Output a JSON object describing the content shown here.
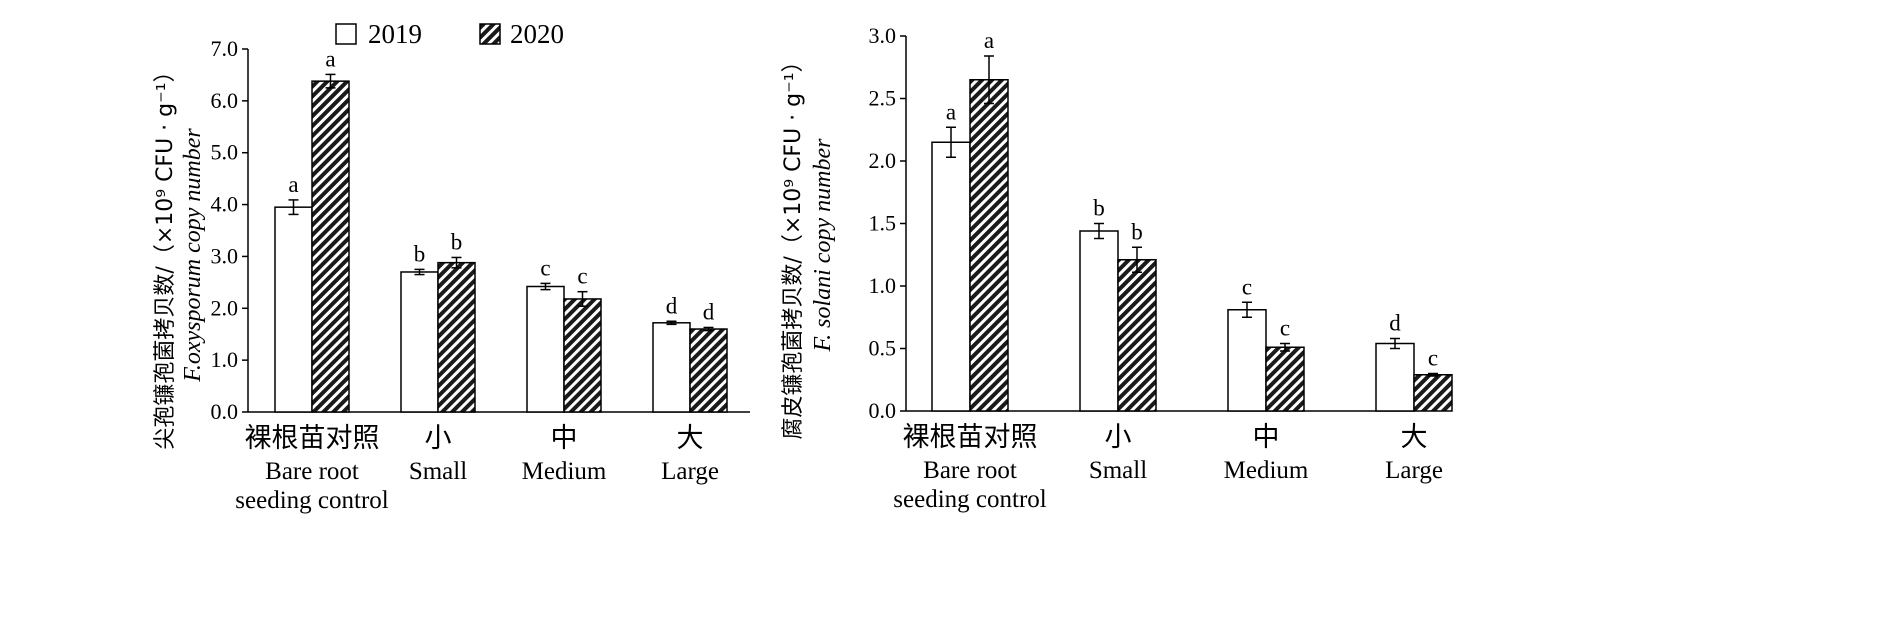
{
  "legend": {
    "items": [
      {
        "label": "2019",
        "fill": "white"
      },
      {
        "label": "2020",
        "fill": "hatch"
      }
    ]
  },
  "chart_data": [
    {
      "type": "bar",
      "ylabel_cn": "尖孢镰孢菌拷贝数/（×10⁹ CFU · g⁻¹）",
      "ylabel_en": "F.oxysporum copy number",
      "ylim": [
        0,
        7
      ],
      "yticks": [
        "0.0",
        "1.0",
        "2.0",
        "3.0",
        "4.0",
        "5.0",
        "6.0",
        "7.0"
      ],
      "categories": [
        {
          "cn": "裸根苗对照",
          "en": [
            "Bare root",
            "seeding control"
          ]
        },
        {
          "cn": "小",
          "en": [
            "Small"
          ]
        },
        {
          "cn": "中",
          "en": [
            "Medium"
          ]
        },
        {
          "cn": "大",
          "en": [
            "Large"
          ]
        }
      ],
      "series": [
        {
          "name": "2019",
          "values": [
            3.95,
            2.7,
            2.42,
            1.72
          ],
          "errors": [
            0.14,
            0.05,
            0.06,
            0.03
          ],
          "letters": [
            "a",
            "b",
            "c",
            "d"
          ]
        },
        {
          "name": "2020",
          "values": [
            6.38,
            2.88,
            2.18,
            1.6
          ],
          "errors": [
            0.13,
            0.1,
            0.14,
            0.03
          ],
          "letters": [
            "a",
            "b",
            "c",
            "d"
          ]
        }
      ]
    },
    {
      "type": "bar",
      "ylabel_cn": "腐皮镰孢菌拷贝数/（×10⁹ CFU · g⁻¹）",
      "ylabel_en": "F. solani copy number",
      "ylim": [
        0,
        3
      ],
      "yticks": [
        "0.0",
        "0.5",
        "1.0",
        "1.5",
        "2.0",
        "2.5",
        "3.0"
      ],
      "categories": [
        {
          "cn": "裸根苗对照",
          "en": [
            "Bare root",
            "seeding control"
          ]
        },
        {
          "cn": "小",
          "en": [
            "Small"
          ]
        },
        {
          "cn": "中",
          "en": [
            "Medium"
          ]
        },
        {
          "cn": "大",
          "en": [
            "Large"
          ]
        }
      ],
      "series": [
        {
          "name": "2019",
          "values": [
            2.15,
            1.44,
            0.81,
            0.54
          ],
          "errors": [
            0.12,
            0.06,
            0.06,
            0.04
          ],
          "letters": [
            "a",
            "b",
            "c",
            "d"
          ]
        },
        {
          "name": "2020",
          "values": [
            2.65,
            1.21,
            0.51,
            0.29
          ],
          "errors": [
            0.19,
            0.1,
            0.03,
            0.01
          ],
          "letters": [
            "a",
            "b",
            "c",
            "c"
          ]
        }
      ]
    }
  ]
}
